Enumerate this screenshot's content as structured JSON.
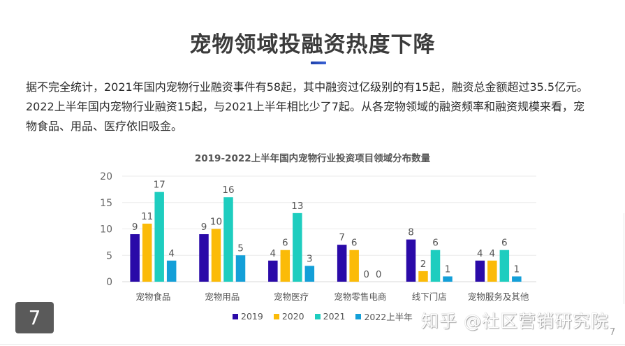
{
  "slide": {
    "title": "宠物领域投融资热度下降",
    "paragraph": "据不完全统计，2021年国内宠物行业融资事件有58起，其中融资过亿级别的有15起，融资总金额超过35.5亿元。2022上半年国内宠物行业融资15起，与2021上半年相比少了7起。从各宠物领域的融资频率和融资规模来看，宠物食品、用品、医疗依旧吸金。",
    "page_badge": "7",
    "page_number_small": "7",
    "watermark": "知乎 @社区营销研究院",
    "accent_color": "#2546b8"
  },
  "chart_data": {
    "type": "bar",
    "title": "2019-2022上半年国内宠物行业投资项目领域分布数量",
    "xlabel": "",
    "ylabel": "",
    "ylim": [
      0,
      20
    ],
    "yticks": [
      0,
      5,
      10,
      15,
      20
    ],
    "grid": true,
    "legend_position": "bottom",
    "categories": [
      "宠物食品",
      "宠物用品",
      "宠物医疗",
      "宠物零售电商",
      "线下门店",
      "宠物服务及其他"
    ],
    "series": [
      {
        "name": "2019",
        "color": "#2a0aa8",
        "values": [
          9,
          9,
          4,
          7,
          8,
          4
        ]
      },
      {
        "name": "2020",
        "color": "#fbbb08",
        "values": [
          11,
          10,
          6,
          6,
          2,
          4
        ]
      },
      {
        "name": "2021",
        "color": "#1ecdbf",
        "values": [
          17,
          16,
          13,
          0,
          6,
          6
        ]
      },
      {
        "name": "2022上半年",
        "color": "#139fd8",
        "values": [
          4,
          5,
          3,
          0,
          1,
          1
        ]
      }
    ]
  }
}
